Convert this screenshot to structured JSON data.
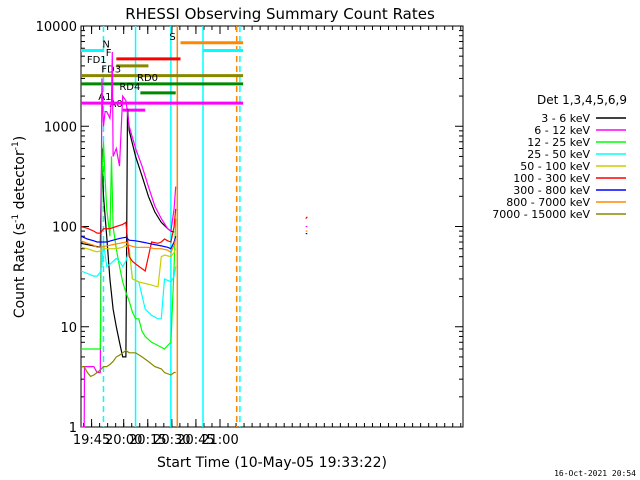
{
  "chart_data": {
    "type": "line",
    "title": "RHESSI Observing Summary Count Rates",
    "xlabel": "Start Time (10-May-05 19:33:22)",
    "ylabel": "Count Rate (s⁻¹ detector⁻¹)",
    "ylabel_main": "Count Rate (s",
    "ylabel_sup1": "-1",
    "ylabel_mid": " detector",
    "ylabel_sup2": "-1",
    "ylabel_end": ")",
    "yscale": "log",
    "xlim": [
      0,
      238
    ],
    "ylim": [
      1,
      10000
    ],
    "x_unit": "minutes since 19:33:22",
    "xticks": [
      {
        "value": 6.6,
        "label": "19:45"
      },
      {
        "value": 26.6,
        "label": "20:00"
      },
      {
        "value": 41.6,
        "label": "20:15"
      },
      {
        "value": 56.6,
        "label": "20:30"
      },
      {
        "value": 71.6,
        "label": "20:45"
      },
      {
        "value": 86.6,
        "label": "21:00"
      }
    ],
    "yticks": [
      {
        "value": 1,
        "label": "1"
      },
      {
        "value": 10,
        "label": "10"
      },
      {
        "value": 100,
        "label": "100"
      },
      {
        "value": 1000,
        "label": "1000"
      },
      {
        "value": 10000,
        "label": "10000"
      }
    ],
    "legend_header": "Det 1,3,4,5,6,9",
    "legend_position": "right",
    "series": [
      {
        "name": "3 - 6 keV",
        "color": "#000000",
        "points": [
          [
            0,
            68
          ],
          [
            8,
            64
          ],
          [
            12,
            62
          ],
          [
            13,
            600
          ],
          [
            14,
            200
          ],
          [
            16,
            80
          ],
          [
            18,
            30
          ],
          [
            20,
            15
          ],
          [
            22,
            10
          ],
          [
            24,
            7
          ],
          [
            26,
            5
          ],
          [
            28,
            5
          ],
          [
            29,
            1500
          ],
          [
            30,
            900
          ],
          [
            34,
            500
          ],
          [
            38,
            320
          ],
          [
            42,
            200
          ],
          [
            46,
            140
          ],
          [
            50,
            110
          ],
          [
            54,
            95
          ],
          [
            56,
            90
          ],
          [
            58,
            88
          ]
        ]
      },
      {
        "name": "6 - 12 keV",
        "color": "#ff00ff",
        "points": [
          [
            0,
            1
          ],
          [
            2,
            1
          ],
          [
            2.2,
            4
          ],
          [
            4,
            4
          ],
          [
            6,
            4
          ],
          [
            8,
            4
          ],
          [
            10,
            3.5
          ],
          [
            12,
            3.5
          ],
          [
            13,
            3000
          ],
          [
            13.5,
            1500
          ],
          [
            14,
            1000
          ],
          [
            15,
            1400
          ],
          [
            16,
            1400
          ],
          [
            17,
            1300
          ],
          [
            18,
            1200
          ],
          [
            19,
            1800
          ],
          [
            19.5,
            5500
          ],
          [
            20,
            500
          ],
          [
            22,
            600
          ],
          [
            24,
            400
          ],
          [
            26,
            2000
          ],
          [
            28,
            1800
          ],
          [
            30,
            1000
          ],
          [
            34,
            600
          ],
          [
            38,
            400
          ],
          [
            42,
            250
          ],
          [
            46,
            160
          ],
          [
            50,
            120
          ],
          [
            54,
            95
          ],
          [
            56,
            90
          ],
          [
            58,
            150
          ],
          [
            59,
            250
          ]
        ]
      },
      {
        "name": "12 - 25 keV",
        "color": "#00ff00",
        "points": [
          [
            0,
            6
          ],
          [
            2,
            6
          ],
          [
            4,
            6
          ],
          [
            8,
            6
          ],
          [
            10,
            6
          ],
          [
            12,
            6
          ],
          [
            13,
            300
          ],
          [
            14,
            700
          ],
          [
            15,
            300
          ],
          [
            16,
            150
          ],
          [
            18,
            80
          ],
          [
            19,
            500
          ],
          [
            20,
            100
          ],
          [
            22,
            60
          ],
          [
            24,
            40
          ],
          [
            26,
            28
          ],
          [
            28,
            22
          ],
          [
            30,
            18
          ],
          [
            32,
            14
          ],
          [
            34,
            12
          ],
          [
            36,
            12
          ],
          [
            38,
            9
          ],
          [
            40,
            8
          ],
          [
            44,
            7
          ],
          [
            48,
            6.5
          ],
          [
            52,
            6
          ],
          [
            54,
            6.5
          ],
          [
            56,
            7
          ],
          [
            58,
            40
          ],
          [
            59,
            120
          ]
        ]
      },
      {
        "name": "25 - 50 keV",
        "color": "#00ffff",
        "points": [
          [
            0,
            36
          ],
          [
            4,
            34
          ],
          [
            8,
            32
          ],
          [
            10,
            32
          ],
          [
            12,
            35
          ],
          [
            13,
            40
          ],
          [
            14,
            70
          ],
          [
            16,
            40
          ],
          [
            18,
            42
          ],
          [
            20,
            45
          ],
          [
            22,
            48
          ],
          [
            24,
            45
          ],
          [
            26,
            40
          ],
          [
            28,
            45
          ],
          [
            30,
            60
          ],
          [
            32,
            30
          ],
          [
            36,
            28
          ],
          [
            40,
            15
          ],
          [
            44,
            13
          ],
          [
            48,
            12
          ],
          [
            50,
            12
          ],
          [
            52,
            30
          ],
          [
            56,
            28
          ],
          [
            58,
            32
          ],
          [
            59,
            40
          ]
        ]
      },
      {
        "name": "50 - 100 keV",
        "color": "#cccc00",
        "points": [
          [
            0,
            62
          ],
          [
            4,
            60
          ],
          [
            8,
            57
          ],
          [
            10,
            56
          ],
          [
            12,
            57
          ],
          [
            14,
            60
          ],
          [
            18,
            60
          ],
          [
            22,
            60
          ],
          [
            26,
            62
          ],
          [
            28,
            65
          ],
          [
            30,
            60
          ],
          [
            32,
            30
          ],
          [
            36,
            28
          ],
          [
            40,
            27
          ],
          [
            44,
            26
          ],
          [
            48,
            25
          ],
          [
            50,
            50
          ],
          [
            52,
            52
          ],
          [
            56,
            50
          ],
          [
            58,
            55
          ],
          [
            59,
            60
          ]
        ]
      },
      {
        "name": "100 - 300 keV",
        "color": "#ff0000",
        "points": [
          [
            0,
            100
          ],
          [
            4,
            96
          ],
          [
            8,
            90
          ],
          [
            10,
            86
          ],
          [
            12,
            86
          ],
          [
            14,
            95
          ],
          [
            18,
            95
          ],
          [
            22,
            100
          ],
          [
            26,
            105
          ],
          [
            28,
            110
          ],
          [
            30,
            50
          ],
          [
            32,
            45
          ],
          [
            36,
            40
          ],
          [
            40,
            36
          ],
          [
            44,
            70
          ],
          [
            48,
            68
          ],
          [
            50,
            70
          ],
          [
            52,
            75
          ],
          [
            54,
            72
          ],
          [
            56,
            70
          ],
          [
            58,
            100
          ],
          [
            59,
            150
          ]
        ]
      },
      {
        "name": "300 - 800 keV",
        "color": "#0000ff",
        "points": [
          [
            0,
            80
          ],
          [
            4,
            75
          ],
          [
            8,
            72
          ],
          [
            10,
            70
          ],
          [
            12,
            70
          ],
          [
            16,
            70
          ],
          [
            20,
            73
          ],
          [
            24,
            76
          ],
          [
            28,
            78
          ],
          [
            30,
            73
          ],
          [
            34,
            72
          ],
          [
            38,
            70
          ],
          [
            42,
            68
          ],
          [
            46,
            66
          ],
          [
            50,
            64
          ],
          [
            54,
            62
          ],
          [
            56,
            60
          ],
          [
            58,
            70
          ],
          [
            59,
            80
          ]
        ]
      },
      {
        "name": "800 - 7000 keV",
        "color": "#ff8800",
        "points": [
          [
            0,
            72
          ],
          [
            4,
            68
          ],
          [
            8,
            65
          ],
          [
            10,
            62
          ],
          [
            12,
            62
          ],
          [
            16,
            64
          ],
          [
            20,
            66
          ],
          [
            24,
            68
          ],
          [
            28,
            70
          ],
          [
            30,
            65
          ],
          [
            34,
            62
          ],
          [
            38,
            62
          ],
          [
            42,
            62
          ],
          [
            46,
            60
          ],
          [
            50,
            60
          ],
          [
            54,
            58
          ],
          [
            56,
            55
          ],
          [
            58,
            65
          ],
          [
            59,
            75
          ]
        ]
      },
      {
        "name": "7000 - 15000 keV",
        "color": "#888800",
        "points": [
          [
            0,
            4
          ],
          [
            2,
            4
          ],
          [
            4,
            3.5
          ],
          [
            6,
            3.2
          ],
          [
            8,
            3.3
          ],
          [
            10,
            3.5
          ],
          [
            12,
            3.7
          ],
          [
            14,
            4
          ],
          [
            16,
            4
          ],
          [
            18,
            4.2
          ],
          [
            20,
            4.5
          ],
          [
            22,
            5
          ],
          [
            24,
            5.2
          ],
          [
            26,
            5.5
          ],
          [
            28,
            5.8
          ],
          [
            30,
            5.5
          ],
          [
            34,
            5.5
          ],
          [
            38,
            5
          ],
          [
            42,
            4.5
          ],
          [
            46,
            4
          ],
          [
            50,
            3.8
          ],
          [
            52,
            3.5
          ],
          [
            56,
            3.3
          ],
          [
            58,
            3.5
          ],
          [
            59,
            3.5
          ]
        ]
      }
    ],
    "post_gap_series": [
      {
        "color": "#ff0000",
        "points": [
          [
            140,
            120
          ],
          [
            141,
            125
          ]
        ]
      },
      {
        "color": "#ff00ff",
        "points": [
          [
            140,
            100
          ],
          [
            141,
            100
          ]
        ]
      },
      {
        "color": "#0000ff",
        "points": [
          [
            140,
            85
          ],
          [
            141,
            85
          ]
        ]
      },
      {
        "color": "#ff8800",
        "points": [
          [
            140,
            90
          ],
          [
            141,
            90
          ]
        ]
      }
    ],
    "annotations": [
      {
        "label": "N",
        "color": "#00ffff",
        "x_range": [
          0,
          14
        ],
        "y": 5700,
        "label_x": 18
      },
      {
        "label": "N",
        "color": "#00ffff",
        "x_range": [
          76,
          101
        ],
        "y": 5700
      },
      {
        "label": "S",
        "color": "#ff8800",
        "x_range": [
          62,
          101
        ],
        "y": 6800,
        "label_x": 59
      },
      {
        "label": "F",
        "color": "#ff0000",
        "x_range": [
          22,
          62
        ],
        "y": 4700,
        "label_x": 19
      },
      {
        "label": "FD1",
        "color": "#888800",
        "x_range": [
          22,
          42
        ],
        "y": 4000,
        "label_x": 16
      },
      {
        "label": "FD3",
        "color": "#888800",
        "x_range": [
          0,
          101
        ],
        "y": 3200,
        "label_x": 25
      },
      {
        "label": "RD0",
        "color": "#008800",
        "x_range": [
          0,
          101
        ],
        "y": 2650,
        "label_x": 48
      },
      {
        "label": "RD4",
        "color": "#008800",
        "x_range": [
          37,
          59
        ],
        "y": 2150,
        "label_x": 37
      },
      {
        "label": "A0",
        "color": "#ff00ff",
        "x_range": [
          26,
          40
        ],
        "y": 1450,
        "label_x": 26
      },
      {
        "label": "A1",
        "color": "#ff00ff",
        "x_range": [
          0,
          101
        ],
        "y": 1700,
        "label_x": 19
      }
    ],
    "vertical_lines": [
      {
        "x": 14,
        "color": "#00ffff",
        "style": "dashed"
      },
      {
        "x": 34,
        "color": "#00ffff",
        "style": "solid"
      },
      {
        "x": 56,
        "color": "#00ffff",
        "style": "solid"
      },
      {
        "x": 60,
        "color": "#ff8800",
        "style": "solid"
      },
      {
        "x": 76,
        "color": "#00ffff",
        "style": "solid"
      },
      {
        "x": 97,
        "color": "#ff8800",
        "style": "dashed"
      },
      {
        "x": 99,
        "color": "#00ffff",
        "style": "dashed"
      }
    ],
    "timestamp": "16-Oct-2021 20:54"
  }
}
